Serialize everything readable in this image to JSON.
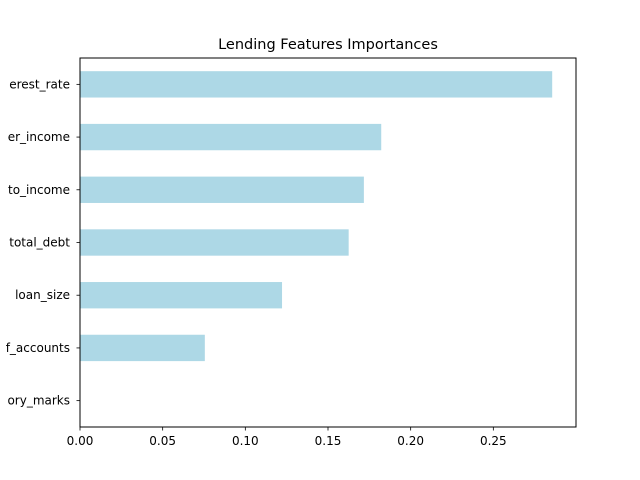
{
  "chart_data": {
    "type": "bar",
    "orientation": "horizontal",
    "title": "Lending Features Importances",
    "xlabel": "",
    "ylabel": "",
    "categories": [
      "derogatory_marks",
      "num_of_accounts",
      "loan_size",
      "total_debt",
      "debt_to_income",
      "borrower_income",
      "interest_rate"
    ],
    "visible_tick_labels": [
      "ory_marks",
      "f_accounts",
      "loan_size",
      "total_debt",
      "to_income",
      "er_income",
      "erest_rate"
    ],
    "values": [
      0.0,
      0.0755,
      0.1222,
      0.1625,
      0.1717,
      0.1822,
      0.2856
    ],
    "xlim": [
      0,
      0.3
    ],
    "xticks": [
      0.0,
      0.05,
      0.1,
      0.15,
      0.2,
      0.25
    ],
    "xtick_labels": [
      "0.00",
      "0.05",
      "0.10",
      "0.15",
      "0.20",
      "0.25"
    ],
    "bar_color": "#add8e6",
    "grid": false,
    "legend": "none"
  }
}
